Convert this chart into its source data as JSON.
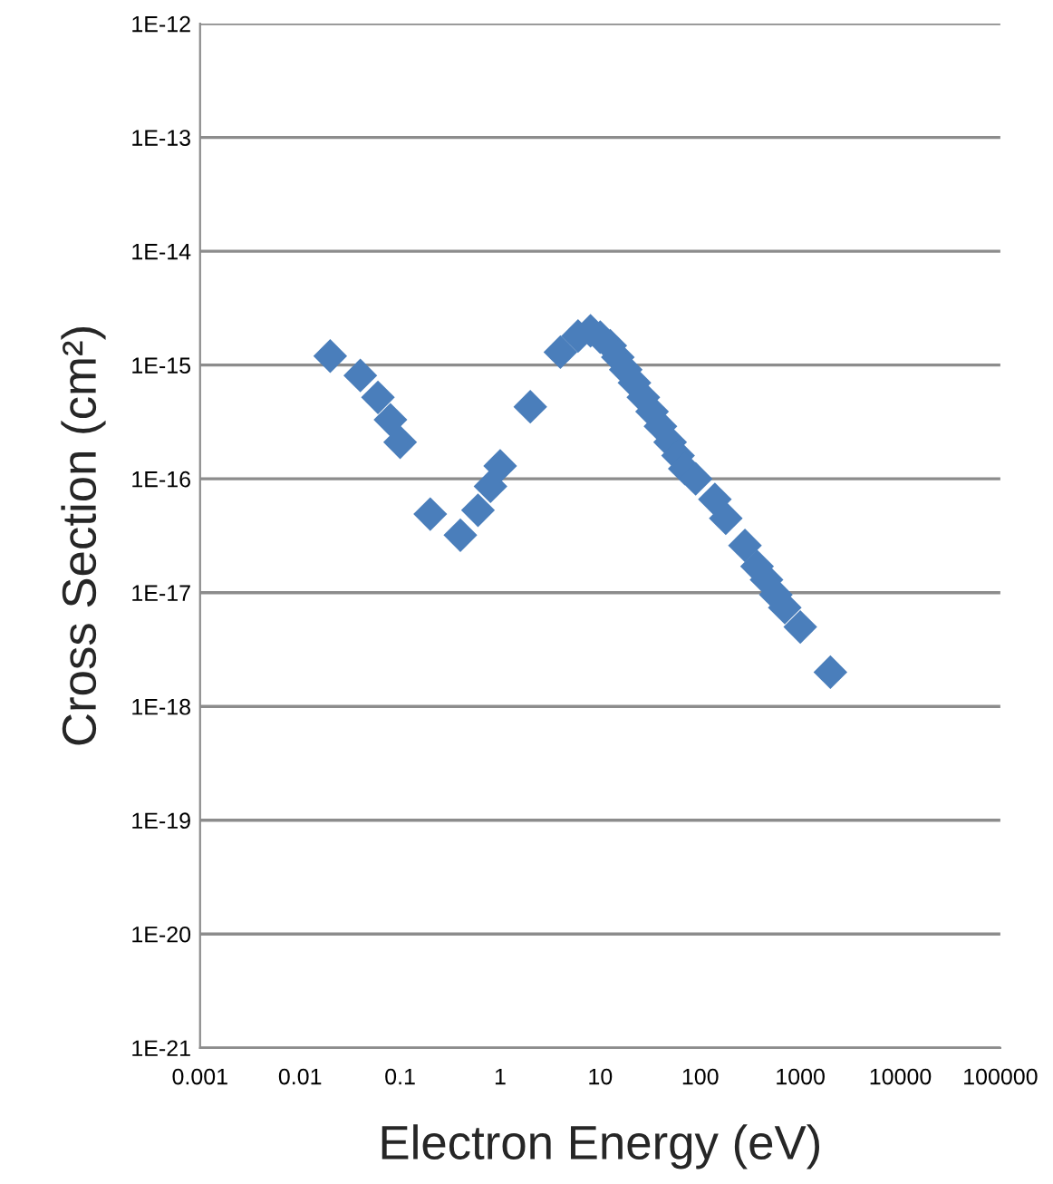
{
  "chart_data": {
    "type": "scatter",
    "xlabel": "Electron Energy (eV)",
    "ylabel": "Cross Section (cm²)",
    "log": "xy",
    "grid": "y",
    "marker": "diamond",
    "legend": false,
    "xlim": [
      0.001,
      100000
    ],
    "ylim": [
      1e-21,
      1e-12
    ],
    "xticks": [
      {
        "value": 0.001,
        "label": "0.001"
      },
      {
        "value": 0.01,
        "label": "0.01"
      },
      {
        "value": 0.1,
        "label": "0.1"
      },
      {
        "value": 1,
        "label": "1"
      },
      {
        "value": 10,
        "label": "10"
      },
      {
        "value": 100,
        "label": "100"
      },
      {
        "value": 1000,
        "label": "1000"
      },
      {
        "value": 10000,
        "label": "10000"
      },
      {
        "value": 100000,
        "label": "100000"
      }
    ],
    "yticks": [
      {
        "value": 1e-21,
        "label": "1E-21"
      },
      {
        "value": 1e-20,
        "label": "1E-20"
      },
      {
        "value": 1e-19,
        "label": "1E-19"
      },
      {
        "value": 1e-18,
        "label": "1E-18"
      },
      {
        "value": 1e-17,
        "label": "1E-17"
      },
      {
        "value": 1e-16,
        "label": "1E-16"
      },
      {
        "value": 1e-15,
        "label": "1E-15"
      },
      {
        "value": 1e-14,
        "label": "1E-14"
      },
      {
        "value": 1e-13,
        "label": "1E-13"
      },
      {
        "value": 1e-12,
        "label": "1E-12"
      }
    ],
    "series": [
      {
        "color": "#4a7ebb",
        "x": [
          0.02,
          0.04,
          0.06,
          0.08,
          0.1,
          0.2,
          0.4,
          0.6,
          0.8,
          1,
          2,
          4,
          6,
          8,
          10,
          12.6,
          15,
          18,
          22,
          27,
          33,
          40,
          50,
          60,
          70,
          90,
          140,
          180,
          280,
          370,
          460,
          570,
          700,
          1000,
          2000
        ],
        "values": [
          1.2e-15,
          8.1e-16,
          5.2e-16,
          3.3e-16,
          2.1e-16,
          4.9e-17,
          3.2e-17,
          5.3e-17,
          8.6e-17,
          1.3e-16,
          4.3e-16,
          1.3e-15,
          1.8e-15,
          2e-15,
          1.76e-15,
          1.48e-15,
          1.17e-15,
          9.1e-16,
          7e-16,
          5.2e-16,
          3.9e-16,
          2.9e-16,
          2.1e-16,
          1.6e-16,
          1.23e-16,
          1e-16,
          6.6e-17,
          4.5e-17,
          2.6e-17,
          1.7e-17,
          1.3e-17,
          9.6e-18,
          7.4e-18,
          5e-18,
          2e-18
        ]
      }
    ]
  }
}
